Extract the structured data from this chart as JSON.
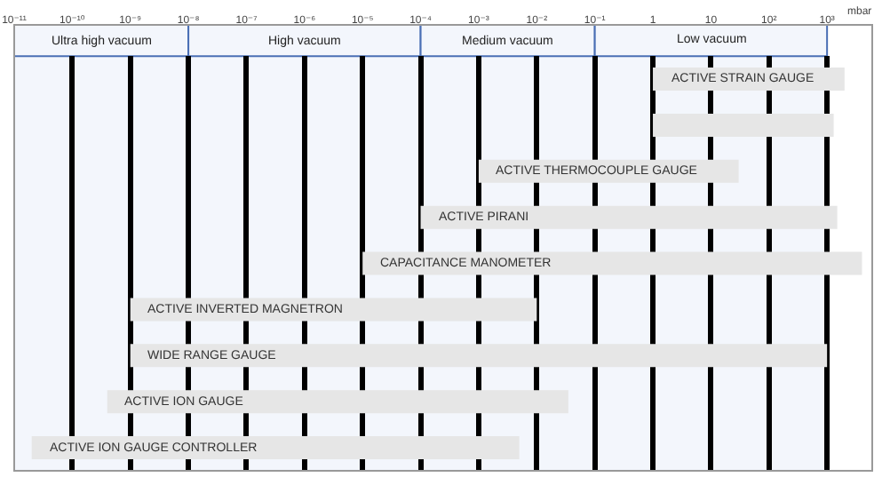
{
  "chart_data": {
    "type": "bar",
    "orientation": "horizontal",
    "tick_labels": "x",
    "grid": "x",
    "log": "x",
    "categories": [
      "ACTIVE STRAIN GAUGE",
      null,
      "ACTIVE THERMOCOUPLE GAUGE",
      "ACTIVE PIRANI",
      "CAPACITANCE MANOMETER",
      "ACTIVE INVERTED MAGNETRON",
      "WIDE RANGE GAUGE",
      "ACTIVE ION GAUGE",
      "ACTIVE ION GAUGE CONTROLLER"
    ],
    "base": [
      1,
      1,
      0.001,
      0.0001,
      1e-05,
      1e-09,
      1e-09,
      4e-10,
      2e-11
    ],
    "values": [
      1999,
      1299,
      29.999,
      1499.9999,
      3999.99999,
      0.009999999,
      999.999999999,
      0.0349999996,
      0.00499999998
    ],
    "color": "#e6e6e6",
    "xlabel": "mbar",
    "xlim": [
      1e-11,
      6000
    ],
    "xticks": [
      {
        "value": 1e-11,
        "label": "10⁻¹¹"
      },
      {
        "value": 1e-10,
        "label": "10⁻¹⁰"
      },
      {
        "value": 1e-09,
        "label": "10⁻⁹"
      },
      {
        "value": 1e-08,
        "label": "10⁻⁸"
      },
      {
        "value": 1e-07,
        "label": "10⁻⁷"
      },
      {
        "value": 1e-06,
        "label": "10⁻⁶"
      },
      {
        "value": 1e-05,
        "label": "10⁻⁵"
      },
      {
        "value": 0.0001,
        "label": "10⁻⁴"
      },
      {
        "value": 0.001,
        "label": "10⁻³"
      },
      {
        "value": 0.01,
        "label": "10⁻²"
      },
      {
        "value": 0.1,
        "label": "10⁻¹"
      },
      1,
      10,
      {
        "value": 100,
        "label": "10²"
      },
      {
        "value": 1000,
        "label": "10³"
      }
    ],
    "bands": [
      {
        "axis": "x",
        "from": 1e-11,
        "to": 1e-08,
        "label": "Ultra high vacuum",
        "color": "#f3f6fc"
      },
      {
        "axis": "x",
        "from": 1e-08,
        "to": 0.0001,
        "label": "High vacuum",
        "color": "#f3f6fc"
      },
      {
        "axis": "x",
        "from": 0.0001,
        "to": 0.1,
        "label": "Medium vacuum",
        "color": "#f3f6fc"
      },
      {
        "axis": "x",
        "from": 0.1,
        "to": 1000,
        "label": "Low vacuum",
        "color": "#f3f6fc"
      }
    ]
  }
}
